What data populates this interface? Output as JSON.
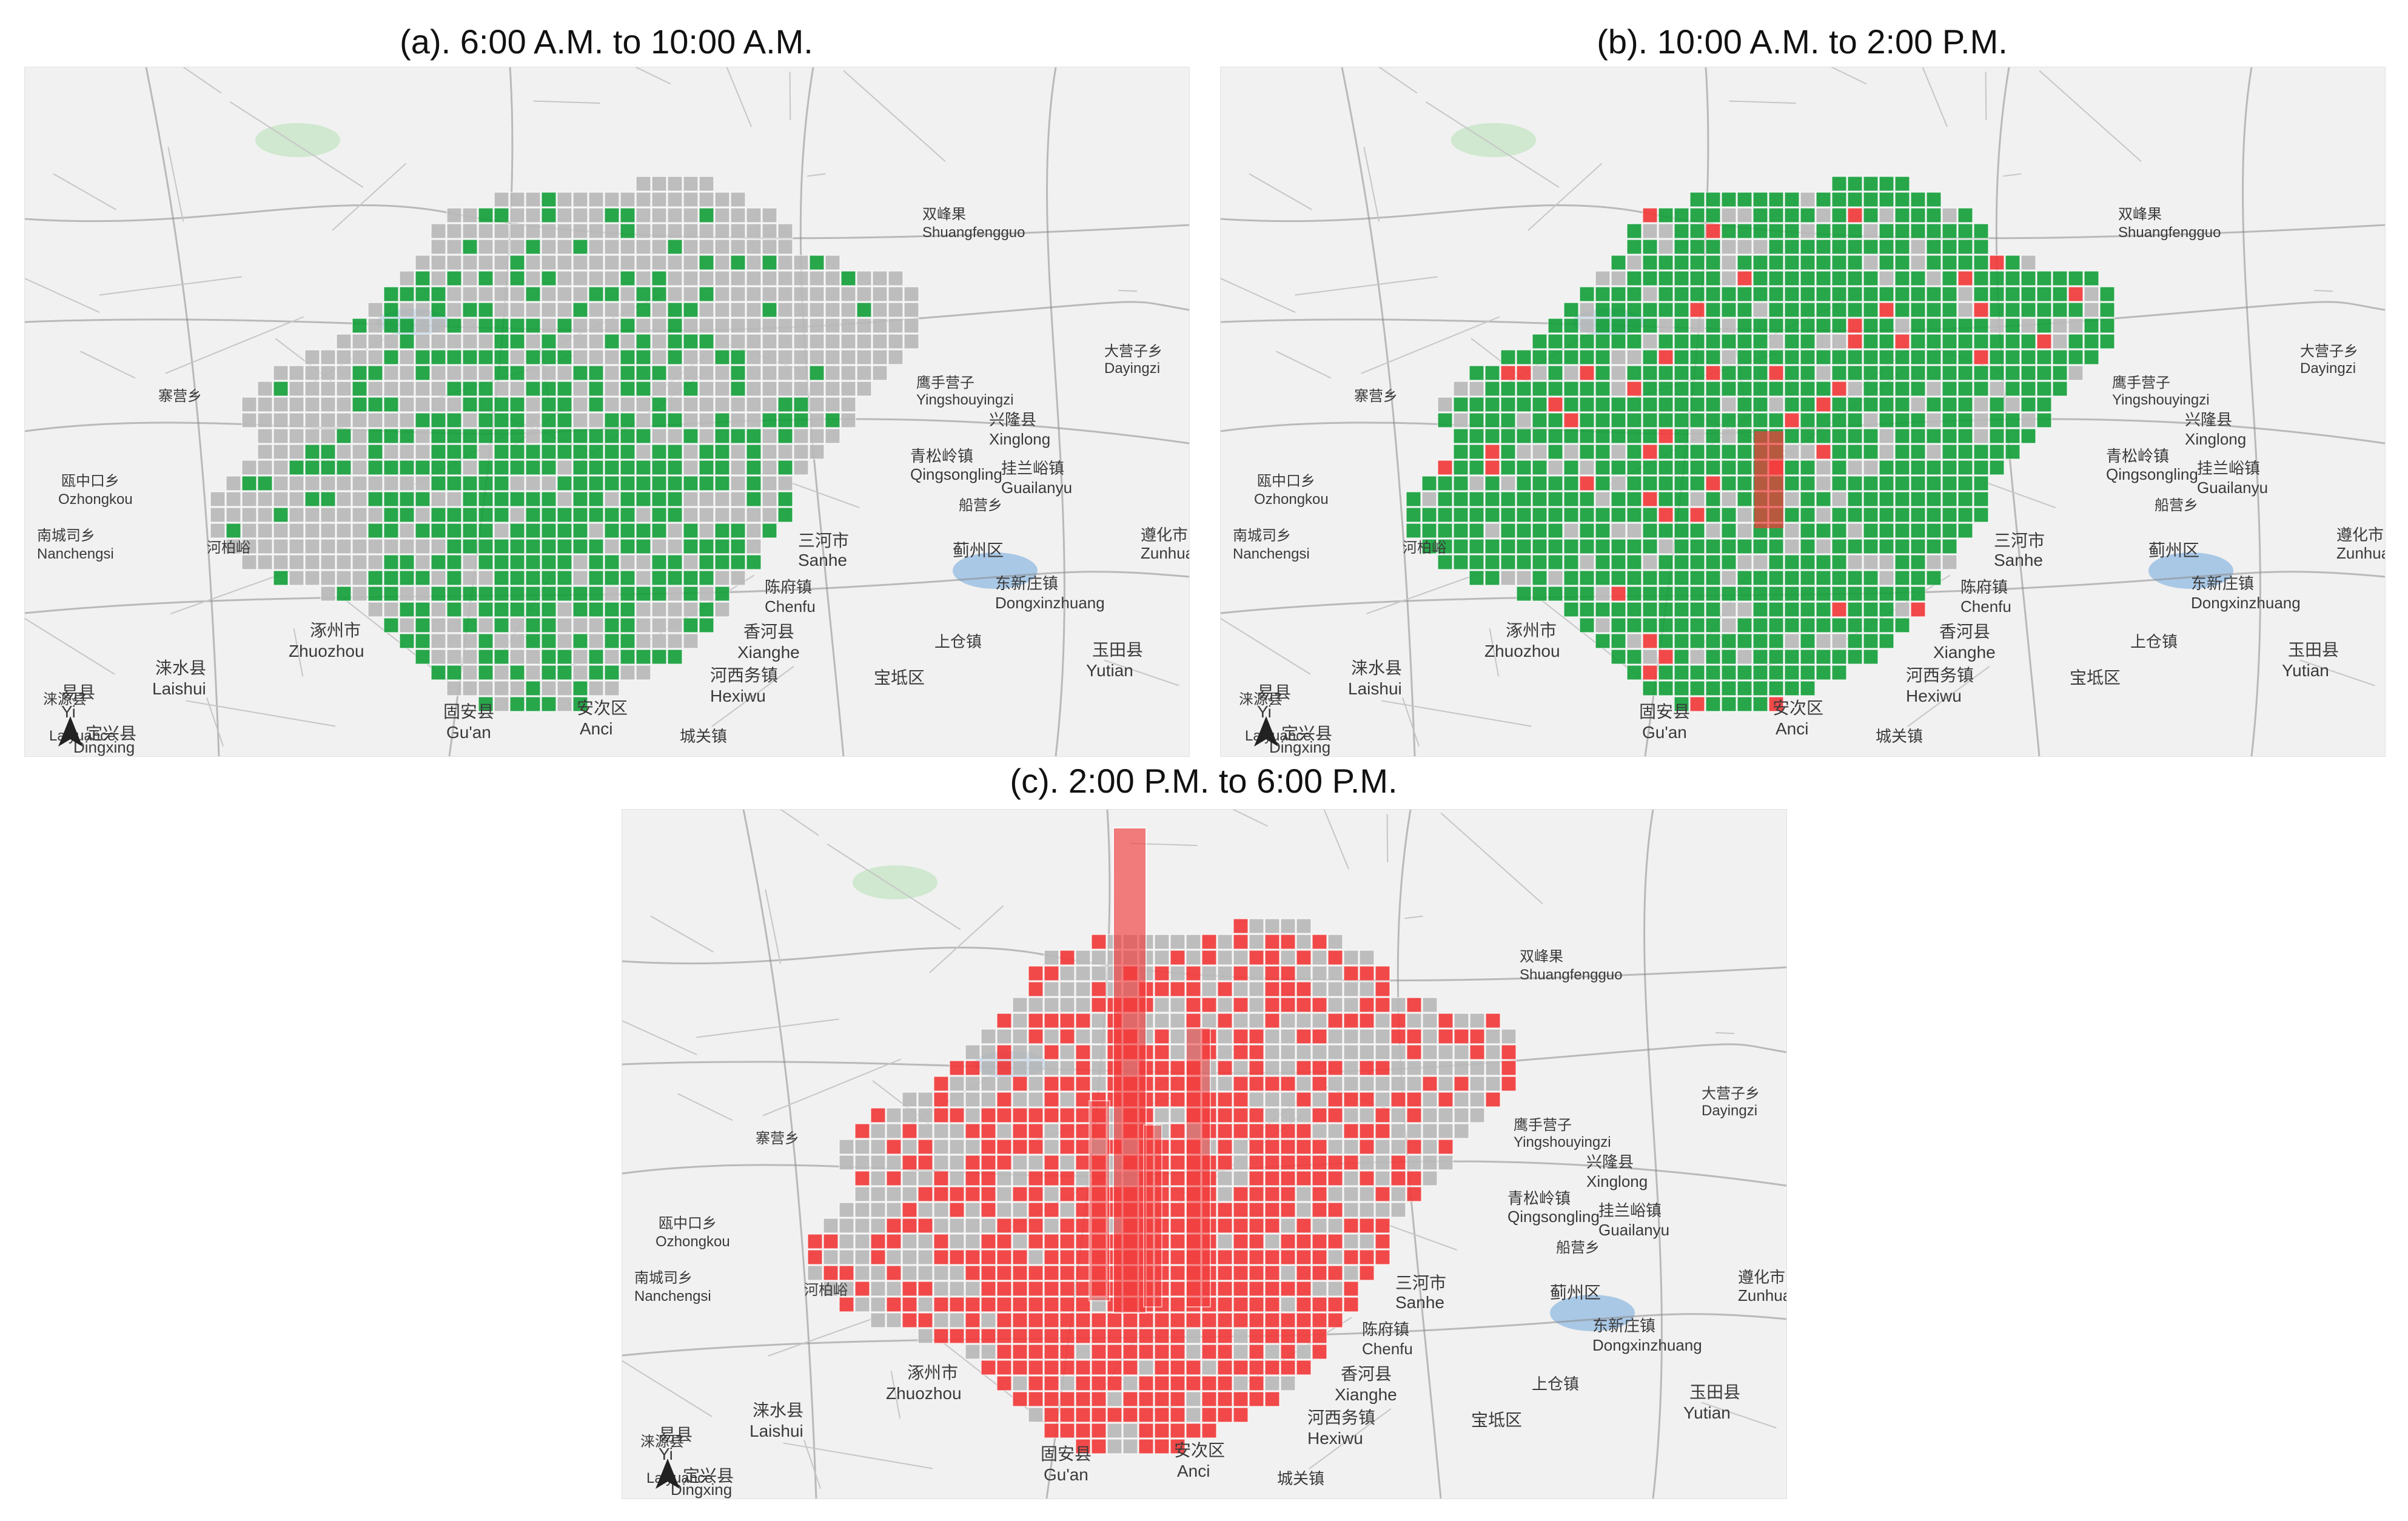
{
  "colors": {
    "background": "#f1f1f1",
    "road": "#8a8a8a",
    "minor_road": "#c6c6c6",
    "water": "#a9c8e6",
    "park": "#cfe8cf",
    "grid_base": "#b9b9b9",
    "green_cell": "#17a03c",
    "red_cell": "#f23b3b"
  },
  "panels": [
    {
      "title": "(a). 6:00 A.M.  to 10:00 A.M.",
      "cell_color_key": "green_cell",
      "labels": {
        "zhuozhou_cn": "涿州市",
        "zhuozhou": "Zhuozhou",
        "laishui_cn": "涞水县",
        "laishui": "Laishui",
        "yi_cn": "易县",
        "yi": "Yi",
        "guan_cn": "固安县",
        "guan": "Gu'an",
        "anci_cn": "安次区",
        "anci": "Anci",
        "dingxing_cn": "定兴县",
        "dingxing": "Dingxing",
        "xianghe_cn": "香河县",
        "xianghe": "Xianghe",
        "hexiwu_cn": "河西务镇",
        "hexiwu": "Hexiwu",
        "chengguan_cn": "城关镇",
        "yutian_cn": "玉田县",
        "yutian": "Yutian",
        "baodi_cn": "宝坻区",
        "shangcang_cn": "上仓镇",
        "chenfu_cn": "陈府镇",
        "chenfu": "Chenfu",
        "sanhe_cn": "三河市",
        "sanhe": "Sanhe",
        "jizhou_cn": "蓟州区",
        "dongxinzhuang_cn": "东新庄镇",
        "dongxinzhuang": "Dongxinzhuang",
        "zunhua_cn": "遵化市",
        "zunhua": "Zunhua",
        "xinglong_cn": "兴隆县",
        "xinglong": "Xinglong",
        "qingsongling_cn": "青松岭镇",
        "qingsongling": "Qingsongling",
        "guailanyu_cn": "挂兰峪镇",
        "guailanyu": "Guailanyu",
        "yingshouyingzi_cn": "鹰手营子",
        "yingshouyingzi": "Yingshouyingzi",
        "dayingzi_cn": "大营子乡",
        "dayingzi": "Dayingzi",
        "nanchengsi_cn": "南城司乡",
        "nanchengsi": "Nanchengsi",
        "ozhongkou_cn": "瓯中口乡",
        "ozhongkou": "Ozhongkou",
        "laiyuan_cn": "涞源县",
        "laiyuan": "Laiyuance",
        "zhaiying_cn": "寨营乡",
        "shuangfengguo_cn": "双峰果",
        "shuangfengguo": "Shuangfengguo",
        "chuanzhuang_cn": "船营乡",
        "hebaiyu_cn": "河柏峪"
      }
    },
    {
      "title": "(b). 10:00 A.M.  to 2:00 P.M.",
      "cell_color_key": "green_cell",
      "accent_color_key": "red_cell",
      "labels": {
        "zhuozhou_cn": "涿州市",
        "zhuozhou": "Zhuozhou",
        "laishui_cn": "涞水县",
        "laishui": "Laishui",
        "yi_cn": "易县",
        "yi": "Yi",
        "guan_cn": "固安县",
        "guan": "Gu'an",
        "anci_cn": "安次区",
        "anci": "Anci",
        "dingxing_cn": "定兴县",
        "dingxing": "Dingxing",
        "xianghe_cn": "香河县",
        "xianghe": "Xianghe",
        "hexiwu_cn": "河西务镇",
        "hexiwu": "Hexiwu",
        "chengguan_cn": "城关镇",
        "yutian_cn": "玉田县",
        "yutian": "Yutian",
        "baodi_cn": "宝坻区",
        "shangcang_cn": "上仓镇",
        "chenfu_cn": "陈府镇",
        "chenfu": "Chenfu",
        "sanhe_cn": "三河市",
        "sanhe": "Sanhe",
        "jizhou_cn": "蓟州区",
        "dongxinzhuang_cn": "东新庄镇",
        "dongxinzhuang": "Dongxinzhuang",
        "zunhua_cn": "遵化市",
        "zunhua": "Zunhua",
        "xinglong_cn": "兴隆县",
        "xinglong": "Xinglong",
        "qingsongling_cn": "青松岭镇",
        "qingsongling": "Qingsongling",
        "guailanyu_cn": "挂兰峪镇",
        "guailanyu": "Guailanyu",
        "yingshouyingzi_cn": "鹰手营子",
        "yingshouyingzi": "Yingshouyingzi",
        "dayingzi_cn": "大营子乡",
        "dayingzi": "Dayingzi",
        "nanchengsi_cn": "南城司乡",
        "nanchengsi": "Nanchengsi",
        "ozhongkou_cn": "瓯中口乡",
        "ozhongkou": "Ozhongkou",
        "laiyuan_cn": "涞源县",
        "laiyuan": "Laiyuance",
        "zhaiying_cn": "寨营乡",
        "shuangfengguo_cn": "双峰果",
        "shuangfengguo": "Shuangfengguo",
        "chuanzhuang_cn": "船营乡",
        "hebaiyu_cn": "河柏峪"
      }
    },
    {
      "title": "(c). 2:00 P.M.  to 6:00 P.M.",
      "cell_color_key": "red_cell",
      "labels": {
        "zhuozhou_cn": "涿州市",
        "zhuozhou": "Zhuozhou",
        "laishui_cn": "涞水县",
        "laishui": "Laishui",
        "yi_cn": "易县",
        "yi": "Yi",
        "guan_cn": "固安县",
        "guan": "Gu'an",
        "anci_cn": "安次区",
        "anci": "Anci",
        "dingxing_cn": "定兴县",
        "dingxing": "Dingxing",
        "xianghe_cn": "香河县",
        "xianghe": "Xianghe",
        "hexiwu_cn": "河西务镇",
        "hexiwu": "Hexiwu",
        "chengguan_cn": "城关镇",
        "yutian_cn": "玉田县",
        "yutian": "Yutian",
        "baodi_cn": "宝坻区",
        "shangcang_cn": "上仓镇",
        "chenfu_cn": "陈府镇",
        "chenfu": "Chenfu",
        "sanhe_cn": "三河市",
        "sanhe": "Sanhe",
        "jizhou_cn": "蓟州区",
        "dongxinzhuang_cn": "东新庄镇",
        "dongxinzhuang": "Dongxinzhuang",
        "zunhua_cn": "遵化市",
        "zunhua": "Zunhua",
        "xinglong_cn": "兴隆县",
        "xinglong": "Xinglong",
        "qingsongling_cn": "青松岭镇",
        "qingsongling": "Qingsongling",
        "guailanyu_cn": "挂兰峪镇",
        "guailanyu": "Guailanyu",
        "yingshouyingzi_cn": "鹰手营子",
        "yingshouyingzi": "Yingshouyingzi",
        "dayingzi_cn": "大营子乡",
        "dayingzi": "Dayingzi",
        "nanchengsi_cn": "南城司乡",
        "nanchengsi": "Nanchengsi",
        "ozhongkou_cn": "瓯中口乡",
        "ozhongkou": "Ozhongkou",
        "laiyuan_cn": "涞源县",
        "laiyuan": "Laiyuance",
        "zhaiying_cn": "寨营乡",
        "shuangfengguo_cn": "双峰果",
        "shuangfengguo": "Shuangfengguo",
        "chuanzhuang_cn": "船营乡",
        "hebaiyu_cn": "河柏峪"
      }
    }
  ]
}
